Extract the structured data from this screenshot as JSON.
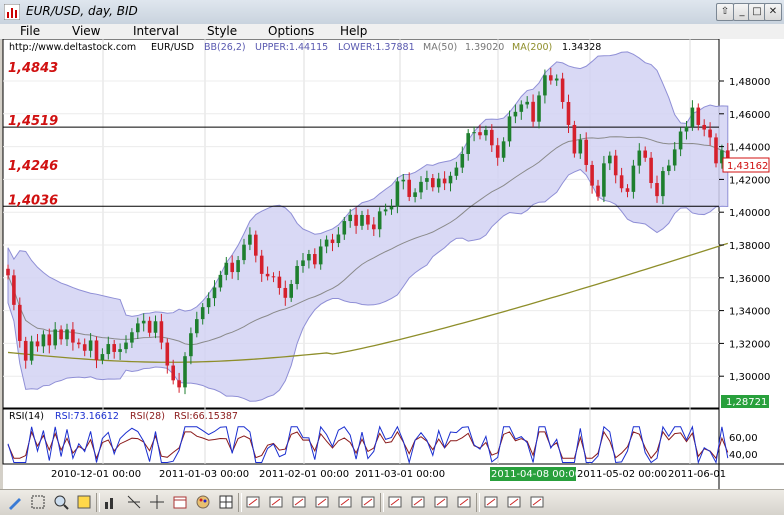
{
  "window": {
    "title": "EUR/USD, day, BID"
  },
  "menu": [
    "File",
    "View",
    "Interval",
    "Style",
    "Options",
    "Help"
  ],
  "header": {
    "site": "http://www.deltastock.com",
    "symbol": "EUR/USD",
    "bb": "BB(26,2)",
    "upper": "UPPER:1.44115",
    "lower": "LOWER:1.37881",
    "ma50": "MA(50)",
    "ma50_val": "1.39020",
    "ma200": "MA(200)",
    "ma200_val": "1.34328"
  },
  "levels": [
    {
      "label": "1,4843",
      "value": 1.4843
    },
    {
      "label": "1,4519",
      "value": 1.4519
    },
    {
      "label": "1,4246",
      "value": 1.4246
    },
    {
      "label": "1,4036",
      "value": 1.4036
    }
  ],
  "price_axis": [
    "1,48000",
    "1,46000",
    "1,44000",
    "1,42000",
    "1,40000",
    "1,38000",
    "1,36000",
    "1,34000",
    "1,32000",
    "1,30000"
  ],
  "current_price": "1,43162",
  "cursor_price": "1,28721",
  "rsi": {
    "label": "RSI(14)",
    "v1": "RSI:73.16612",
    "p2": "RSI(28)",
    "v2": "RSI:66.15387",
    "axis": [
      "60,00",
      "40,00"
    ]
  },
  "x_axis": [
    "2010-12-01 00:00",
    "2011-01-03 00:00",
    "2011-02-01 00:00",
    "2011-03-01 00:00",
    "2011-04-08 00:00",
    "2011-05-02 00:00",
    "2011-06-01"
  ],
  "colors": {
    "up": "#1e7f2e",
    "down": "#d5202c",
    "band": "#c8c8f0",
    "ma200": "#8e8e2a",
    "ma50": "#808080",
    "level": "#d01010"
  },
  "toolbar_icons": [
    "pencil-icon",
    "select-icon",
    "magnify-icon",
    "zoom-icon",
    "bar-chart-icon",
    "fibonacci-icon",
    "crosshair-icon",
    "calendar-icon",
    "palette-icon",
    "grid-icon",
    "bar-style-icon",
    "candle-style-icon",
    "line-style-icon",
    "ohlc-icon",
    "columns-icon",
    "table-icon",
    "folder-icon",
    "save-icon",
    "chart-icon",
    "print-icon",
    "people-icon",
    "person-icon",
    "exit-icon"
  ],
  "chart_data": {
    "type": "candlestick",
    "title": "EUR/USD, day, BID",
    "ylim": [
      1.28,
      1.5
    ],
    "series": [
      {
        "name": "Price",
        "values": [
          1.3615,
          1.3435,
          1.3215,
          1.3095,
          1.3212,
          1.3182,
          1.3255,
          1.3188,
          1.3285,
          1.3225,
          1.3285,
          1.3205,
          1.3195,
          1.3155,
          1.3218,
          1.3098,
          1.3135,
          1.3196,
          1.3148,
          1.3165,
          1.3205,
          1.3268,
          1.3322,
          1.3338,
          1.3265,
          1.3335,
          1.3205,
          1.3065,
          1.2975,
          1.2932,
          1.3122,
          1.3262,
          1.3348,
          1.3421,
          1.3476,
          1.3541,
          1.3618,
          1.3692,
          1.3635,
          1.3708,
          1.3802,
          1.3863,
          1.3735,
          1.3624,
          1.3609,
          1.3607,
          1.3538,
          1.3478,
          1.3562,
          1.3672,
          1.3706,
          1.3745,
          1.3682,
          1.3791,
          1.3833,
          1.3812,
          1.3864,
          1.3946,
          1.3984,
          1.3917,
          1.3983,
          1.3925,
          1.3896,
          1.4005,
          1.4017,
          1.4035,
          1.4188,
          1.4198,
          1.4093,
          1.4121,
          1.4185,
          1.4208,
          1.4152,
          1.4205,
          1.4176,
          1.4222,
          1.4272,
          1.4355,
          1.4482,
          1.4488,
          1.4469,
          1.4502,
          1.4408,
          1.4332,
          1.4432,
          1.4584,
          1.4612,
          1.4657,
          1.4673,
          1.4552,
          1.4712,
          1.4835,
          1.4803,
          1.4815,
          1.4672,
          1.4532,
          1.4358,
          1.4442,
          1.4288,
          1.4162,
          1.4095,
          1.4298,
          1.4345,
          1.4225,
          1.4146,
          1.4124,
          1.4284,
          1.4376,
          1.4332,
          1.4178,
          1.4098,
          1.4251,
          1.4285,
          1.4383,
          1.4492,
          1.4521,
          1.4638,
          1.4532,
          1.4504,
          1.4456,
          1.4298,
          1.4377,
          1.4316
        ]
      }
    ],
    "indicators": [
      "BB(26,2)",
      "MA(50)",
      "MA(200)",
      "RSI(14)",
      "RSI(28)"
    ]
  }
}
